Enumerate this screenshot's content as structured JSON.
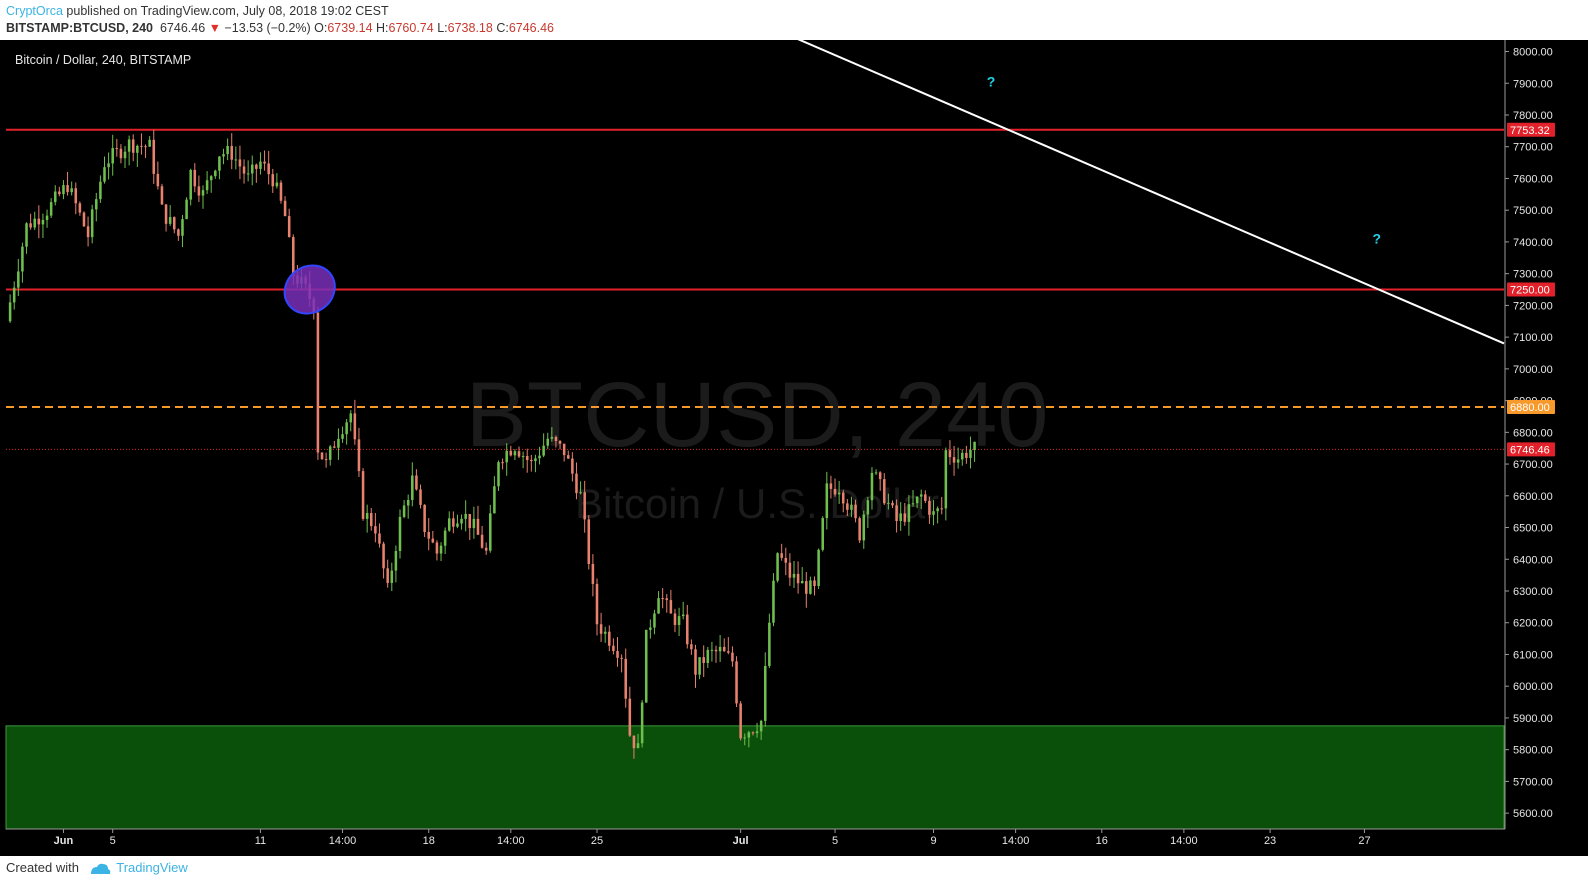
{
  "header": {
    "author": "CryptOrca",
    "published": " published on TradingView.com, July 08, 2018 19:02 CEST",
    "symbol_interval": "BITSTAMP:BTCUSD, 240",
    "last": "6746.46",
    "change_arrow": "▼",
    "change": "−13.53 (−0.2%)",
    "o_label": "O:",
    "o_value": "6739.14",
    "h_label": "H:",
    "h_value": "6760.74",
    "l_label": "L:",
    "l_value": "6738.18",
    "c_label": "C:",
    "c_value": "6746.46"
  },
  "footer": {
    "created_with": "Created with",
    "brand": "TradingView"
  },
  "colors": {
    "background": "#000000",
    "up_candle": "#6fbf4f",
    "down_candle": "#e8826f",
    "resistance": "#e3212a",
    "dashed_level": "#f79a2b",
    "support_zone": "#0a4f0a",
    "trendline": "#ffffff",
    "question_mark": "#22d3e8"
  },
  "chart_data": {
    "type": "candlestick",
    "title": "Bitcoin / Dollar, 240, BITSTAMP",
    "watermark": {
      "line1": "BTCUSD, 240",
      "line2": "Bitcoin / U.S. Dollar"
    },
    "y_ticks": [
      5600,
      5700,
      5800,
      5900,
      6000,
      6100,
      6200,
      6300,
      6400,
      6500,
      6600,
      6700,
      6800,
      6900,
      7000,
      7100,
      7200,
      7300,
      7400,
      7500,
      7600,
      7700,
      7800,
      7900,
      8000
    ],
    "y_tick_labels": [
      "5600.00",
      "5700.00",
      "5800.00",
      "5900.00",
      "6000.00",
      "6100.00",
      "6200.00",
      "6300.00",
      "6400.00",
      "6500.00",
      "6600.00",
      "6700.00",
      "6800.00",
      "6900.00",
      "7000.00",
      "7100.00",
      "7200.00",
      "7300.00",
      "7400.00",
      "7500.00",
      "7600.00",
      "7700.00",
      "7800.00",
      "7900.00",
      "8000.00"
    ],
    "x_ticks": [
      {
        "label": "Jun",
        "bar": 13,
        "bold": true
      },
      {
        "label": "5",
        "bar": 25
      },
      {
        "label": "11",
        "bar": 61
      },
      {
        "label": "14:00",
        "bar": 81
      },
      {
        "label": "18",
        "bar": 102
      },
      {
        "label": "14:00",
        "bar": 122
      },
      {
        "label": "25",
        "bar": 143
      },
      {
        "label": "Jul",
        "bar": 178,
        "bold": true
      },
      {
        "label": "5",
        "bar": 201
      },
      {
        "label": "9",
        "bar": 225
      },
      {
        "label": "14:00",
        "bar": 245
      },
      {
        "label": "16",
        "bar": 266
      },
      {
        "label": "14:00",
        "bar": 286
      },
      {
        "label": "23",
        "bar": 307
      },
      {
        "label": "27",
        "bar": 330
      }
    ],
    "x_bar_range": [
      -1,
      364
    ],
    "ylim": [
      5550,
      8030
    ],
    "levels": [
      {
        "label": "7753.32",
        "value": 7753.32,
        "style": "solid",
        "color": "#e3212a"
      },
      {
        "label": "7250.00",
        "value": 7250,
        "style": "solid",
        "color": "#e3212a"
      },
      {
        "label": "6880.00",
        "value": 6880,
        "style": "dashed",
        "color": "#f79a2b"
      }
    ],
    "last_price": {
      "label": "6746.46",
      "value": 6746.46
    },
    "support_zone": {
      "from": 5550,
      "to": 5875
    },
    "trendline": [
      {
        "bar": 190,
        "price": 8050
      },
      {
        "bar": 364,
        "price": 7080
      }
    ],
    "question_marks": [
      {
        "text": "?",
        "bar": 239,
        "price": 7890
      },
      {
        "text": "?",
        "bar": 333,
        "price": 7395
      }
    ],
    "ellipse": {
      "bar": 73,
      "price": 7250
    },
    "anchors": [
      {
        "bar": 0,
        "price": 7150
      },
      {
        "bar": 5,
        "price": 7450
      },
      {
        "bar": 10,
        "price": 7500
      },
      {
        "bar": 15,
        "price": 7580
      },
      {
        "bar": 20,
        "price": 7420
      },
      {
        "bar": 24,
        "price": 7650
      },
      {
        "bar": 30,
        "price": 7710
      },
      {
        "bar": 35,
        "price": 7700
      },
      {
        "bar": 38,
        "price": 7500
      },
      {
        "bar": 42,
        "price": 7420
      },
      {
        "bar": 45,
        "price": 7620
      },
      {
        "bar": 48,
        "price": 7550
      },
      {
        "bar": 52,
        "price": 7680
      },
      {
        "bar": 55,
        "price": 7680
      },
      {
        "bar": 59,
        "price": 7600
      },
      {
        "bar": 62,
        "price": 7650
      },
      {
        "bar": 65,
        "price": 7600
      },
      {
        "bar": 68,
        "price": 7480
      },
      {
        "bar": 70,
        "price": 7300
      },
      {
        "bar": 73,
        "price": 7250
      },
      {
        "bar": 75,
        "price": 7200
      },
      {
        "bar": 76,
        "price": 6750
      },
      {
        "bar": 78,
        "price": 6700
      },
      {
        "bar": 81,
        "price": 6800
      },
      {
        "bar": 84,
        "price": 6860
      },
      {
        "bar": 87,
        "price": 6550
      },
      {
        "bar": 90,
        "price": 6500
      },
      {
        "bar": 93,
        "price": 6300
      },
      {
        "bar": 96,
        "price": 6520
      },
      {
        "bar": 99,
        "price": 6650
      },
      {
        "bar": 102,
        "price": 6500
      },
      {
        "bar": 105,
        "price": 6420
      },
      {
        "bar": 108,
        "price": 6520
      },
      {
        "bar": 111,
        "price": 6550
      },
      {
        "bar": 114,
        "price": 6500
      },
      {
        "bar": 117,
        "price": 6420
      },
      {
        "bar": 120,
        "price": 6720
      },
      {
        "bar": 124,
        "price": 6760
      },
      {
        "bar": 128,
        "price": 6700
      },
      {
        "bar": 132,
        "price": 6780
      },
      {
        "bar": 136,
        "price": 6740
      },
      {
        "bar": 140,
        "price": 6600
      },
      {
        "bar": 142,
        "price": 6400
      },
      {
        "bar": 144,
        "price": 6200
      },
      {
        "bar": 147,
        "price": 6150
      },
      {
        "bar": 150,
        "price": 6100
      },
      {
        "bar": 152,
        "price": 5850
      },
      {
        "bar": 154,
        "price": 5800
      },
      {
        "bar": 156,
        "price": 6150
      },
      {
        "bar": 159,
        "price": 6300
      },
      {
        "bar": 162,
        "price": 6220
      },
      {
        "bar": 165,
        "price": 6200
      },
      {
        "bar": 168,
        "price": 6050
      },
      {
        "bar": 171,
        "price": 6100
      },
      {
        "bar": 174,
        "price": 6110
      },
      {
        "bar": 177,
        "price": 6080
      },
      {
        "bar": 179,
        "price": 5850
      },
      {
        "bar": 182,
        "price": 5870
      },
      {
        "bar": 184,
        "price": 5890
      },
      {
        "bar": 186,
        "price": 6200
      },
      {
        "bar": 188,
        "price": 6420
      },
      {
        "bar": 191,
        "price": 6350
      },
      {
        "bar": 194,
        "price": 6320
      },
      {
        "bar": 197,
        "price": 6300
      },
      {
        "bar": 200,
        "price": 6620
      },
      {
        "bar": 203,
        "price": 6630
      },
      {
        "bar": 206,
        "price": 6550
      },
      {
        "bar": 208,
        "price": 6480
      },
      {
        "bar": 211,
        "price": 6680
      },
      {
        "bar": 214,
        "price": 6600
      },
      {
        "bar": 217,
        "price": 6520
      },
      {
        "bar": 220,
        "price": 6550
      },
      {
        "bar": 223,
        "price": 6600
      },
      {
        "bar": 226,
        "price": 6540
      },
      {
        "bar": 228,
        "price": 6560
      },
      {
        "bar": 229,
        "price": 6740
      },
      {
        "bar": 232,
        "price": 6720
      },
      {
        "bar": 235,
        "price": 6746
      }
    ]
  }
}
